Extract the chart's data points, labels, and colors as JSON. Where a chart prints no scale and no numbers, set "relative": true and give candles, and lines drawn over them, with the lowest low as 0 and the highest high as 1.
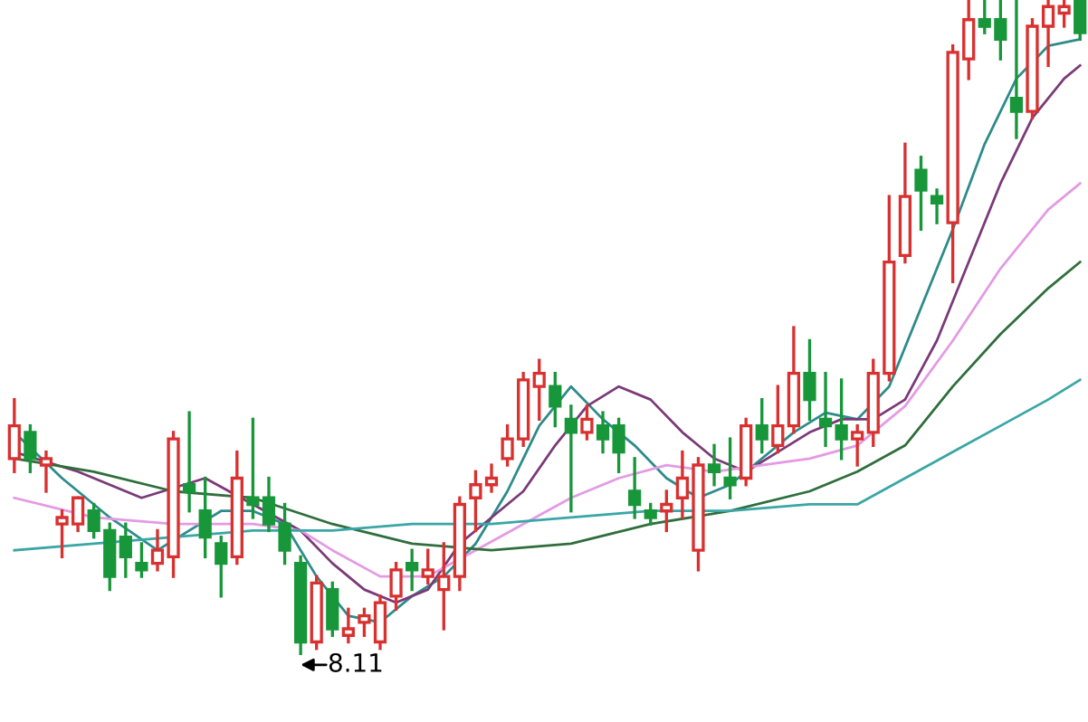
{
  "chart_data": {
    "type": "candlestick",
    "relative": true,
    "categories": [
      null,
      null,
      null,
      null,
      null,
      null,
      null,
      null,
      null,
      null,
      null,
      null,
      null,
      null,
      null,
      null,
      null,
      null,
      null,
      null,
      null,
      null,
      null,
      null,
      null,
      null,
      null,
      null,
      null,
      null,
      null,
      null,
      null,
      null,
      null,
      null,
      null,
      null,
      null,
      null,
      null,
      null,
      null,
      null,
      null,
      null,
      null,
      null,
      null,
      null,
      null,
      null,
      null,
      null,
      null,
      null,
      null,
      null,
      null,
      null,
      null,
      null,
      null,
      null,
      null,
      null,
      null,
      null
    ],
    "ohlc": [
      [
        0.3,
        0.39,
        0.28,
        0.35
      ],
      [
        0.34,
        0.35,
        0.28,
        0.3
      ],
      [
        0.29,
        0.31,
        0.25,
        0.3
      ],
      [
        0.2,
        0.22,
        0.15,
        0.21
      ],
      [
        0.2,
        0.24,
        0.19,
        0.24
      ],
      [
        0.22,
        0.23,
        0.18,
        0.19
      ],
      [
        0.19,
        0.2,
        0.1,
        0.12
      ],
      [
        0.18,
        0.2,
        0.12,
        0.15
      ],
      [
        0.14,
        0.17,
        0.12,
        0.13
      ],
      [
        0.14,
        0.19,
        0.13,
        0.16
      ],
      [
        0.15,
        0.34,
        0.12,
        0.33
      ],
      [
        0.26,
        0.37,
        0.22,
        0.25
      ],
      [
        0.22,
        0.27,
        0.15,
        0.18
      ],
      [
        0.17,
        0.18,
        0.09,
        0.14
      ],
      [
        0.15,
        0.31,
        0.14,
        0.27
      ],
      [
        0.24,
        0.36,
        0.21,
        0.23
      ],
      [
        0.24,
        0.27,
        0.19,
        0.2
      ],
      [
        0.2,
        0.23,
        0.14,
        0.16
      ],
      [
        0.14,
        0.15,
        0.0,
        0.02
      ],
      [
        0.02,
        0.12,
        0.01,
        0.11
      ],
      [
        0.1,
        0.11,
        0.03,
        0.04
      ],
      [
        0.03,
        0.07,
        0.02,
        0.04
      ],
      [
        0.05,
        0.07,
        0.03,
        0.06
      ],
      [
        0.02,
        0.09,
        0.01,
        0.08
      ],
      [
        0.09,
        0.14,
        0.07,
        0.13
      ],
      [
        0.14,
        0.16,
        0.1,
        0.13
      ],
      [
        0.12,
        0.16,
        0.11,
        0.13
      ],
      [
        0.1,
        0.17,
        0.04,
        0.12
      ],
      [
        0.12,
        0.24,
        0.1,
        0.23
      ],
      [
        0.24,
        0.28,
        0.19,
        0.26
      ],
      [
        0.26,
        0.29,
        0.25,
        0.27
      ],
      [
        0.3,
        0.35,
        0.29,
        0.33
      ],
      [
        0.33,
        0.43,
        0.32,
        0.42
      ],
      [
        0.41,
        0.45,
        0.36,
        0.43
      ],
      [
        0.41,
        0.43,
        0.35,
        0.38
      ],
      [
        0.36,
        0.38,
        0.22,
        0.34
      ],
      [
        0.34,
        0.38,
        0.33,
        0.36
      ],
      [
        0.35,
        0.37,
        0.31,
        0.33
      ],
      [
        0.35,
        0.36,
        0.28,
        0.31
      ],
      [
        0.25,
        0.3,
        0.21,
        0.23
      ],
      [
        0.22,
        0.23,
        0.2,
        0.21
      ],
      [
        0.22,
        0.25,
        0.19,
        0.23
      ],
      [
        0.24,
        0.31,
        0.21,
        0.27
      ],
      [
        0.16,
        0.3,
        0.13,
        0.29
      ],
      [
        0.29,
        0.32,
        0.26,
        0.28
      ],
      [
        0.27,
        0.33,
        0.24,
        0.26
      ],
      [
        0.27,
        0.36,
        0.26,
        0.35
      ],
      [
        0.35,
        0.39,
        0.31,
        0.33
      ],
      [
        0.32,
        0.41,
        0.31,
        0.35
      ],
      [
        0.35,
        0.5,
        0.34,
        0.43
      ],
      [
        0.43,
        0.48,
        0.36,
        0.39
      ],
      [
        0.36,
        0.43,
        0.32,
        0.35
      ],
      [
        0.35,
        0.42,
        0.3,
        0.33
      ],
      [
        0.33,
        0.35,
        0.29,
        0.34
      ],
      [
        0.34,
        0.45,
        0.32,
        0.43
      ],
      [
        0.43,
        0.7,
        0.42,
        0.6
      ],
      [
        0.61,
        0.78,
        0.6,
        0.7
      ],
      [
        0.74,
        0.76,
        0.65,
        0.71
      ],
      [
        0.7,
        0.71,
        0.66,
        0.69
      ],
      [
        0.66,
        0.93,
        0.57,
        0.92
      ],
      [
        0.91,
        1.0,
        0.88,
        0.97
      ],
      [
        0.97,
        1.0,
        0.95,
        0.96
      ],
      [
        0.97,
        1.0,
        0.91,
        0.94
      ],
      [
        0.85,
        1.0,
        0.79,
        0.83
      ],
      [
        0.83,
        0.97,
        0.82,
        0.96
      ],
      [
        0.96,
        1.0,
        0.9,
        0.99
      ],
      [
        0.98,
        1.0,
        0.96,
        0.99
      ],
      [
        1.0,
        1.0,
        0.94,
        0.95
      ]
    ],
    "series": [
      {
        "type": "line",
        "color": "#2e8b8b",
        "values": [
          0.34,
          null,
          null,
          0.27,
          null,
          null,
          0.21,
          null,
          null,
          0.16,
          null,
          0.19,
          null,
          0.22,
          null,
          0.22,
          null,
          0.2,
          null,
          0.12,
          null,
          0.06,
          null,
          0.05,
          null,
          0.09,
          null,
          0.12,
          null,
          0.17,
          null,
          0.25,
          null,
          0.35,
          null,
          0.41,
          null,
          0.36,
          null,
          0.32,
          null,
          0.27,
          null,
          0.24,
          null,
          0.26,
          null,
          0.3,
          null,
          0.34,
          null,
          0.37,
          null,
          0.36,
          null,
          0.41,
          null,
          0.53,
          null,
          0.65,
          null,
          0.78,
          null,
          0.88,
          null,
          0.93,
          null,
          0.94
        ]
      },
      {
        "type": "line",
        "color": "#7a3a78",
        "values": [
          0.31,
          null,
          null,
          null,
          0.28,
          null,
          null,
          null,
          0.24,
          null,
          null,
          null,
          0.27,
          null,
          null,
          0.23,
          null,
          null,
          0.19,
          null,
          0.14,
          null,
          0.1,
          null,
          0.08,
          null,
          0.1,
          null,
          0.17,
          null,
          0.21,
          null,
          0.25,
          null,
          0.32,
          null,
          0.38,
          null,
          0.41,
          null,
          0.39,
          null,
          0.34,
          null,
          0.3,
          null,
          0.28,
          null,
          0.31,
          null,
          0.34,
          null,
          0.36,
          null,
          0.36,
          null,
          0.39,
          null,
          0.48,
          null,
          0.6,
          null,
          0.72,
          null,
          0.82,
          null,
          0.88,
          0.9
        ]
      },
      {
        "type": "line",
        "color": "#e39be3",
        "values": [
          0.24,
          null,
          null,
          null,
          null,
          0.21,
          null,
          null,
          null,
          null,
          0.2,
          null,
          null,
          null,
          null,
          0.2,
          null,
          null,
          0.19,
          null,
          0.16,
          null,
          null,
          0.12,
          null,
          null,
          0.12,
          null,
          null,
          0.16,
          null,
          null,
          0.2,
          null,
          null,
          0.24,
          null,
          null,
          0.27,
          null,
          null,
          0.29,
          null,
          null,
          0.28,
          null,
          null,
          0.29,
          null,
          null,
          0.3,
          null,
          null,
          0.32,
          null,
          null,
          0.38,
          null,
          null,
          0.48,
          null,
          null,
          0.59,
          null,
          null,
          0.68,
          null,
          0.72
        ]
      },
      {
        "type": "line",
        "color": "#2f6e3c",
        "values": [
          0.3,
          null,
          null,
          null,
          null,
          0.28,
          null,
          null,
          null,
          null,
          0.25,
          null,
          null,
          null,
          null,
          0.24,
          null,
          null,
          null,
          null,
          0.2,
          null,
          null,
          null,
          null,
          0.17,
          null,
          null,
          null,
          null,
          0.16,
          null,
          null,
          null,
          null,
          0.17,
          null,
          null,
          null,
          null,
          0.2,
          null,
          null,
          null,
          null,
          0.22,
          null,
          null,
          null,
          null,
          0.25,
          null,
          null,
          0.28,
          null,
          null,
          0.32,
          null,
          null,
          0.41,
          null,
          null,
          0.49,
          null,
          null,
          0.56,
          null,
          0.6
        ]
      },
      {
        "type": "line",
        "color": "#3aa6a6",
        "values": [
          0.16,
          null,
          null,
          null,
          null,
          0.17,
          null,
          null,
          null,
          null,
          0.18,
          null,
          null,
          null,
          null,
          0.19,
          null,
          null,
          null,
          null,
          0.19,
          null,
          null,
          null,
          null,
          0.2,
          null,
          null,
          null,
          null,
          0.2,
          null,
          null,
          null,
          null,
          0.21,
          null,
          null,
          null,
          null,
          0.22,
          null,
          null,
          null,
          null,
          0.22,
          null,
          null,
          null,
          null,
          0.23,
          null,
          null,
          0.23,
          null,
          null,
          0.27,
          null,
          null,
          0.31,
          null,
          null,
          0.35,
          null,
          null,
          0.39,
          null,
          0.42
        ]
      }
    ],
    "annotations": [
      "8.11"
    ]
  }
}
